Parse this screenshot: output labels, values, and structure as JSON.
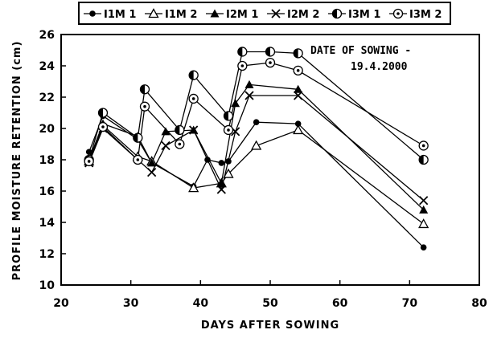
{
  "chart_data": {
    "type": "line",
    "xlabel": "DAYS AFTER SOWING",
    "ylabel": "PROFILE MOISTURE RETENTION (cm)",
    "xlim": [
      20,
      80
    ],
    "ylim": [
      10,
      26
    ],
    "xticks": [
      "20",
      "30",
      "40",
      "50",
      "60",
      "70",
      "80"
    ],
    "yticks": [
      "10",
      "12",
      "14",
      "16",
      "18",
      "20",
      "22",
      "24",
      "26"
    ],
    "grid": false,
    "legend_position": "top",
    "annotation_line1": "DATE OF SOWING -",
    "annotation_line2": "19.4.2000",
    "series": [
      {
        "name": "I1M 1",
        "marker": "filled-circle",
        "x": [
          24,
          26,
          31,
          33,
          39,
          41,
          43,
          44,
          48,
          54,
          72
        ],
        "y": [
          18.5,
          20.8,
          19.3,
          17.8,
          16.3,
          18.0,
          17.8,
          17.9,
          20.4,
          20.3,
          12.4
        ]
      },
      {
        "name": "I1M 2",
        "marker": "open-triangle",
        "x": [
          24,
          26,
          31,
          33,
          39,
          43,
          44,
          48,
          54,
          72
        ],
        "y": [
          17.9,
          20.2,
          18.2,
          17.9,
          16.2,
          16.5,
          17.1,
          18.9,
          19.9,
          13.9
        ]
      },
      {
        "name": "I2M 1",
        "marker": "filled-triangle",
        "x": [
          24,
          26,
          31,
          33,
          35,
          39,
          43,
          45,
          47,
          54,
          72
        ],
        "y": [
          18.0,
          20.3,
          19.5,
          17.8,
          19.8,
          19.9,
          16.5,
          21.6,
          22.8,
          22.5,
          14.8
        ]
      },
      {
        "name": "I2M 2",
        "marker": "x",
        "x": [
          24,
          26,
          33,
          35,
          39,
          43,
          45,
          47,
          54,
          72
        ],
        "y": [
          17.8,
          20.0,
          17.2,
          18.9,
          19.9,
          16.1,
          19.8,
          22.1,
          22.1,
          15.4
        ]
      },
      {
        "name": "I3M 1",
        "marker": "half-filled-circle",
        "x": [
          24,
          26,
          31,
          32,
          37,
          39,
          44,
          46,
          50,
          54,
          72
        ],
        "y": [
          18.0,
          21.0,
          19.4,
          22.5,
          19.9,
          23.4,
          20.8,
          24.9,
          24.9,
          24.8,
          18.0
        ]
      },
      {
        "name": "I3M 2",
        "marker": "dot-circle",
        "x": [
          24,
          26,
          31,
          32,
          37,
          39,
          44,
          46,
          50,
          54,
          72
        ],
        "y": [
          17.9,
          20.1,
          18.0,
          21.4,
          19.0,
          21.9,
          19.9,
          24.0,
          24.2,
          23.7,
          18.9
        ]
      }
    ]
  }
}
